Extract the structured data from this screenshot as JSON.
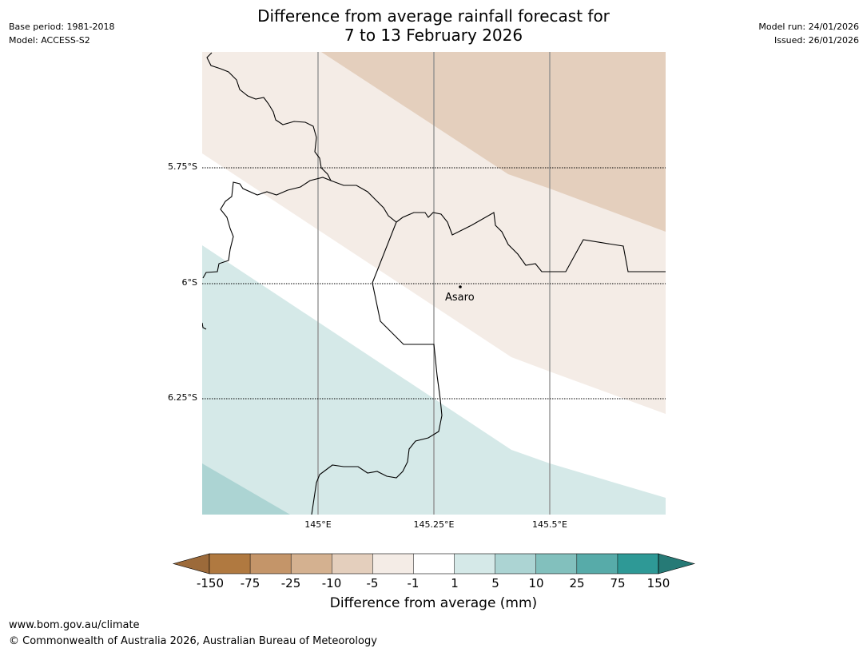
{
  "header": {
    "title_line1": "Difference from average rainfall forecast for",
    "title_line2": "7 to 13 February 2026",
    "base_period": "Base period: 1981-2018",
    "model": "Model: ACCESS-S2",
    "model_run": "Model run: 24/01/2026",
    "issued": "Issued: 26/01/2026"
  },
  "map": {
    "place_name": "Asaro",
    "lat_labels": [
      "5.75°S",
      "6°S",
      "6.25°S"
    ],
    "lon_labels": [
      "145°E",
      "145.25°E",
      "145.5°E"
    ]
  },
  "legend": {
    "title": "Difference from average (mm)",
    "tick_labels": [
      "-150",
      "-75",
      "-25",
      "-10",
      "-5",
      "-1",
      "1",
      "5",
      "10",
      "25",
      "75",
      "150"
    ],
    "colors": [
      "#9c6a3a",
      "#b07940",
      "#c49569",
      "#d4b190",
      "#e4cfbd",
      "#f4ece6",
      "#ffffff",
      "#d5e9e8",
      "#acd4d3",
      "#82c0bd",
      "#57aba9",
      "#2e9996",
      "#267a76"
    ]
  },
  "footer": {
    "url": "www.bom.gov.au/climate",
    "copyright": "© Commonwealth of Australia 2026, Australian Bureau of Meteorology"
  }
}
